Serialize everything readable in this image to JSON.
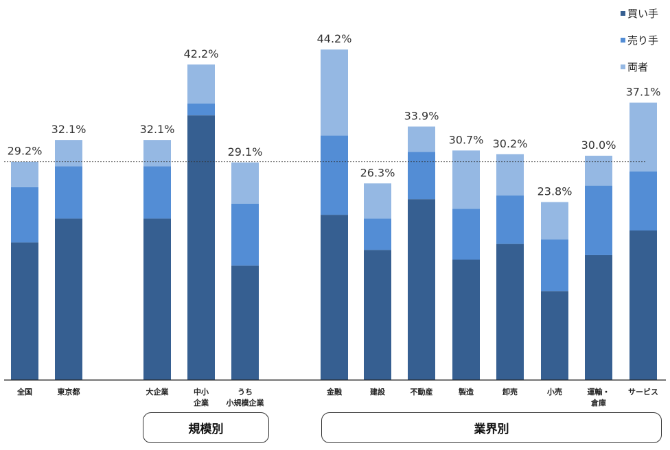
{
  "chart_data": {
    "type": "bar",
    "stacked": true,
    "categories": [
      "全国",
      "東京都",
      "大企業",
      "中小\n企業",
      "うち\n小規模企業",
      "金融",
      "建設",
      "不動産",
      "製造",
      "卸売",
      "小売",
      "運輸・\n倉庫",
      "サービス"
    ],
    "series": [
      {
        "name": "買い手",
        "color": "#365f91",
        "values": [
          18.4,
          21.6,
          21.6,
          35.4,
          15.3,
          22.1,
          17.4,
          24.2,
          16.1,
          18.2,
          11.9,
          16.7,
          20.0
        ]
      },
      {
        "name": "売り手",
        "color": "#538dd5",
        "values": [
          7.4,
          7.0,
          7.0,
          1.6,
          8.3,
          10.6,
          4.2,
          6.3,
          6.8,
          6.5,
          6.9,
          9.3,
          7.9
        ]
      },
      {
        "name": "両者",
        "color": "#95b8e3",
        "values": [
          3.4,
          3.5,
          3.5,
          5.2,
          5.5,
          11.5,
          4.7,
          3.4,
          7.8,
          5.5,
          5.0,
          4.0,
          9.2
        ]
      }
    ],
    "totals": [
      "29.2%",
      "32.1%",
      "32.1%",
      "42.2%",
      "29.1%",
      "44.2%",
      "26.3%",
      "33.9%",
      "30.7%",
      "30.2%",
      "23.8%",
      "30.0%",
      "37.1%"
    ],
    "reference_line": 29.2,
    "ylim": [
      0,
      46
    ],
    "legend_position": "top-right",
    "groups": [
      {
        "label": "規模別",
        "categories": [
          "大企業",
          "中小企業",
          "うち小規模企業"
        ]
      },
      {
        "label": "業界別",
        "categories": [
          "金融",
          "建設",
          "不動産",
          "製造",
          "卸売",
          "小売",
          "運輸・倉庫",
          "サービス"
        ]
      }
    ]
  }
}
